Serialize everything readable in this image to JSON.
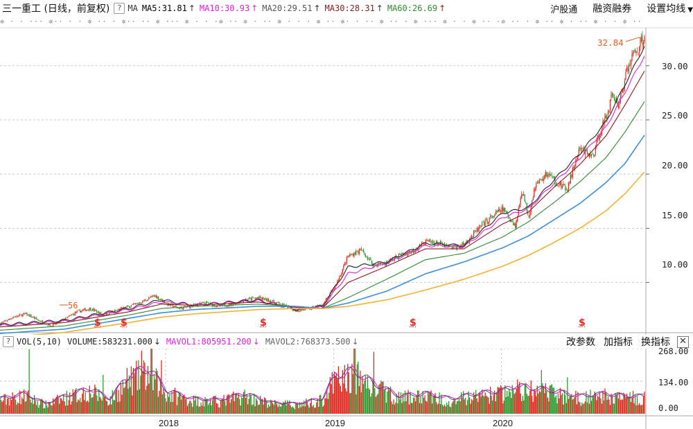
{
  "header": {
    "title": "三一重工 (日线，前复权)",
    "help": "?",
    "ma_label": "MA",
    "ma_items": [
      {
        "text": "MA5:31.81",
        "arrow": "↑",
        "color": "#000000"
      },
      {
        "text": "MA10:30.93",
        "arrow": "↑",
        "color": "#e020e0"
      },
      {
        "text": "MA20:29.51",
        "arrow": "↑",
        "color": "#555555"
      },
      {
        "text": "MA30:28.31",
        "arrow": "↑",
        "color": "#8b1a1a"
      },
      {
        "text": "MA60:26.69",
        "arrow": "↑",
        "color": "#2e8b2e"
      }
    ],
    "links": [
      "沪股通",
      "融资融券",
      "设置均线"
    ]
  },
  "price_axis": [
    "30.00",
    "25.00",
    "20.00",
    "15.00",
    "10.00"
  ],
  "high_marker": "32.84",
  "low_marker": "56",
  "dividend_marker": "$",
  "volume_header": {
    "help": "?",
    "name": "VOL(5,10)",
    "volume": "VOLUME:583231.000",
    "volume_arrow": "↓",
    "mavol1": "MAVOL1:805951.200",
    "mavol1_arrow": "↓",
    "mavol2": "MAVOL2:768373.500",
    "mavol2_arrow": "↓",
    "buttons": [
      "改参数",
      "加指标",
      "换指标"
    ],
    "close": "✕"
  },
  "volume_axis": [
    "268.00",
    "134.00",
    "0.00"
  ],
  "x_axis": [
    "2018",
    "2019",
    "2020"
  ],
  "colors": {
    "up": "#e0281f",
    "down": "#2e9a2e",
    "ma5": "#222222",
    "ma10": "#e020e0",
    "ma20": "#8b1a1a",
    "ma60": "#2e8b2e",
    "ma120": "#3a8fd8",
    "ma250": "#f5b130",
    "grid": "#c8c8c8"
  },
  "chart_data": {
    "type": "line",
    "title": "三一重工 (日线，前复权)",
    "ylim": [
      5.5,
      33.5
    ],
    "x_ticks": [
      "2018",
      "2019",
      "2020"
    ],
    "price_series": [
      {
        "t": 0.0,
        "v": 6.2
      },
      {
        "t": 0.02,
        "v": 6.8
      },
      {
        "t": 0.04,
        "v": 7.1
      },
      {
        "t": 0.06,
        "v": 6.5
      },
      {
        "t": 0.08,
        "v": 6.0
      },
      {
        "t": 0.1,
        "v": 6.6
      },
      {
        "t": 0.12,
        "v": 7.3
      },
      {
        "t": 0.14,
        "v": 7.6
      },
      {
        "t": 0.16,
        "v": 7.0
      },
      {
        "t": 0.18,
        "v": 7.4
      },
      {
        "t": 0.2,
        "v": 7.8
      },
      {
        "t": 0.22,
        "v": 8.2
      },
      {
        "t": 0.24,
        "v": 8.8
      },
      {
        "t": 0.26,
        "v": 8.0
      },
      {
        "t": 0.28,
        "v": 7.6
      },
      {
        "t": 0.3,
        "v": 7.9
      },
      {
        "t": 0.32,
        "v": 8.1
      },
      {
        "t": 0.34,
        "v": 7.8
      },
      {
        "t": 0.36,
        "v": 8.0
      },
      {
        "t": 0.38,
        "v": 8.4
      },
      {
        "t": 0.4,
        "v": 8.6
      },
      {
        "t": 0.42,
        "v": 8.3
      },
      {
        "t": 0.44,
        "v": 7.9
      },
      {
        "t": 0.46,
        "v": 7.4
      },
      {
        "t": 0.48,
        "v": 7.6
      },
      {
        "t": 0.5,
        "v": 7.9
      },
      {
        "t": 0.52,
        "v": 9.6
      },
      {
        "t": 0.54,
        "v": 12.4
      },
      {
        "t": 0.56,
        "v": 13.0
      },
      {
        "t": 0.58,
        "v": 11.6
      },
      {
        "t": 0.6,
        "v": 11.8
      },
      {
        "t": 0.62,
        "v": 12.5
      },
      {
        "t": 0.64,
        "v": 12.9
      },
      {
        "t": 0.66,
        "v": 13.8
      },
      {
        "t": 0.68,
        "v": 13.6
      },
      {
        "t": 0.7,
        "v": 13.2
      },
      {
        "t": 0.72,
        "v": 13.5
      },
      {
        "t": 0.74,
        "v": 14.8
      },
      {
        "t": 0.76,
        "v": 15.9
      },
      {
        "t": 0.78,
        "v": 16.8
      },
      {
        "t": 0.8,
        "v": 15.2
      },
      {
        "t": 0.81,
        "v": 18.6
      },
      {
        "t": 0.82,
        "v": 16.1
      },
      {
        "t": 0.83,
        "v": 18.9
      },
      {
        "t": 0.85,
        "v": 20.1
      },
      {
        "t": 0.86,
        "v": 19.4
      },
      {
        "t": 0.88,
        "v": 18.5
      },
      {
        "t": 0.89,
        "v": 20.6
      },
      {
        "t": 0.9,
        "v": 22.3
      },
      {
        "t": 0.92,
        "v": 21.6
      },
      {
        "t": 0.93,
        "v": 23.8
      },
      {
        "t": 0.94,
        "v": 25.2
      },
      {
        "t": 0.95,
        "v": 27.3
      },
      {
        "t": 0.96,
        "v": 26.4
      },
      {
        "t": 0.97,
        "v": 28.9
      },
      {
        "t": 0.98,
        "v": 30.8
      },
      {
        "t": 0.99,
        "v": 31.6
      },
      {
        "t": 1.0,
        "v": 32.84
      }
    ],
    "ma_series": [
      {
        "name": "MA5",
        "color": "#222222",
        "values": [
          [
            0,
            6.1
          ],
          [
            0.1,
            6.5
          ],
          [
            0.2,
            7.6
          ],
          [
            0.25,
            8.4
          ],
          [
            0.3,
            7.9
          ],
          [
            0.4,
            8.4
          ],
          [
            0.46,
            7.5
          ],
          [
            0.5,
            7.8
          ],
          [
            0.54,
            11.4
          ],
          [
            0.6,
            11.9
          ],
          [
            0.66,
            13.6
          ],
          [
            0.72,
            13.4
          ],
          [
            0.78,
            16.4
          ],
          [
            0.82,
            16.9
          ],
          [
            0.86,
            19.5
          ],
          [
            0.9,
            21.9
          ],
          [
            0.94,
            24.8
          ],
          [
            0.97,
            28.3
          ],
          [
            1.0,
            31.81
          ]
        ]
      },
      {
        "name": "MA10",
        "color": "#e020e0",
        "values": [
          [
            0,
            6.0
          ],
          [
            0.1,
            6.4
          ],
          [
            0.2,
            7.5
          ],
          [
            0.25,
            8.2
          ],
          [
            0.3,
            7.9
          ],
          [
            0.4,
            8.3
          ],
          [
            0.46,
            7.6
          ],
          [
            0.5,
            7.7
          ],
          [
            0.54,
            10.8
          ],
          [
            0.6,
            11.8
          ],
          [
            0.66,
            13.4
          ],
          [
            0.72,
            13.3
          ],
          [
            0.78,
            16.0
          ],
          [
            0.82,
            16.8
          ],
          [
            0.86,
            19.2
          ],
          [
            0.9,
            21.5
          ],
          [
            0.94,
            24.3
          ],
          [
            0.97,
            27.6
          ],
          [
            1.0,
            30.93
          ]
        ]
      },
      {
        "name": "MA20",
        "color": "#8b1a1a",
        "values": [
          [
            0,
            5.9
          ],
          [
            0.1,
            6.3
          ],
          [
            0.2,
            7.3
          ],
          [
            0.25,
            8.0
          ],
          [
            0.3,
            7.9
          ],
          [
            0.4,
            8.2
          ],
          [
            0.46,
            7.7
          ],
          [
            0.5,
            7.6
          ],
          [
            0.54,
            10.0
          ],
          [
            0.6,
            11.5
          ],
          [
            0.66,
            13.1
          ],
          [
            0.72,
            13.1
          ],
          [
            0.78,
            15.4
          ],
          [
            0.82,
            16.5
          ],
          [
            0.86,
            18.8
          ],
          [
            0.9,
            20.9
          ],
          [
            0.94,
            23.5
          ],
          [
            0.97,
            26.4
          ],
          [
            1.0,
            29.51
          ]
        ]
      },
      {
        "name": "MA60",
        "color": "#2e8b2e",
        "values": [
          [
            0,
            5.6
          ],
          [
            0.1,
            6.0
          ],
          [
            0.2,
            7.0
          ],
          [
            0.25,
            7.6
          ],
          [
            0.3,
            7.8
          ],
          [
            0.4,
            8.0
          ],
          [
            0.46,
            7.8
          ],
          [
            0.5,
            7.6
          ],
          [
            0.54,
            8.6
          ],
          [
            0.6,
            10.3
          ],
          [
            0.66,
            12.1
          ],
          [
            0.72,
            12.7
          ],
          [
            0.78,
            14.2
          ],
          [
            0.82,
            15.6
          ],
          [
            0.86,
            17.4
          ],
          [
            0.9,
            19.3
          ],
          [
            0.94,
            21.5
          ],
          [
            0.97,
            23.9
          ],
          [
            1.0,
            26.69
          ]
        ]
      },
      {
        "name": "MA120",
        "color": "#3a8fd8",
        "values": [
          [
            0,
            5.3
          ],
          [
            0.1,
            5.7
          ],
          [
            0.2,
            6.7
          ],
          [
            0.25,
            7.2
          ],
          [
            0.3,
            7.5
          ],
          [
            0.4,
            7.8
          ],
          [
            0.46,
            7.8
          ],
          [
            0.5,
            7.6
          ],
          [
            0.54,
            8.1
          ],
          [
            0.6,
            9.2
          ],
          [
            0.66,
            10.8
          ],
          [
            0.72,
            11.9
          ],
          [
            0.78,
            13.2
          ],
          [
            0.82,
            14.3
          ],
          [
            0.86,
            15.8
          ],
          [
            0.9,
            17.3
          ],
          [
            0.94,
            19.2
          ],
          [
            0.97,
            21.0
          ],
          [
            1.0,
            23.6
          ]
        ]
      },
      {
        "name": "MA250",
        "color": "#f5b130",
        "values": [
          [
            0,
            4.9
          ],
          [
            0.1,
            5.4
          ],
          [
            0.2,
            6.3
          ],
          [
            0.25,
            6.8
          ],
          [
            0.3,
            7.1
          ],
          [
            0.4,
            7.5
          ],
          [
            0.46,
            7.6
          ],
          [
            0.5,
            7.6
          ],
          [
            0.54,
            7.8
          ],
          [
            0.6,
            8.4
          ],
          [
            0.66,
            9.3
          ],
          [
            0.72,
            10.3
          ],
          [
            0.78,
            11.5
          ],
          [
            0.82,
            12.5
          ],
          [
            0.86,
            13.7
          ],
          [
            0.9,
            15.0
          ],
          [
            0.94,
            16.6
          ],
          [
            0.97,
            18.2
          ],
          [
            1.0,
            20.2
          ]
        ]
      }
    ],
    "volume_ylim": [
      0,
      268
    ],
    "volume_profile": [
      [
        0,
        60
      ],
      [
        0.04,
        80
      ],
      [
        0.07,
        40
      ],
      [
        0.1,
        70
      ],
      [
        0.14,
        100
      ],
      [
        0.17,
        60
      ],
      [
        0.2,
        150
      ],
      [
        0.23,
        180
      ],
      [
        0.26,
        90
      ],
      [
        0.3,
        60
      ],
      [
        0.34,
        55
      ],
      [
        0.38,
        80
      ],
      [
        0.42,
        45
      ],
      [
        0.46,
        40
      ],
      [
        0.5,
        60
      ],
      [
        0.52,
        150
      ],
      [
        0.55,
        170
      ],
      [
        0.58,
        120
      ],
      [
        0.62,
        70
      ],
      [
        0.66,
        80
      ],
      [
        0.7,
        60
      ],
      [
        0.74,
        80
      ],
      [
        0.78,
        90
      ],
      [
        0.8,
        110
      ],
      [
        0.83,
        100
      ],
      [
        0.86,
        90
      ],
      [
        0.9,
        70
      ],
      [
        0.94,
        80
      ],
      [
        0.97,
        70
      ],
      [
        1.0,
        70
      ]
    ],
    "volume_spikes": [
      [
        0.045,
        265
      ],
      [
        0.22,
        260
      ],
      [
        0.235,
        268
      ],
      [
        0.55,
        268
      ],
      [
        0.58,
        255
      ],
      [
        0.16,
        160
      ],
      [
        0.25,
        220
      ],
      [
        0.84,
        180
      ],
      [
        0.88,
        150
      ]
    ]
  }
}
